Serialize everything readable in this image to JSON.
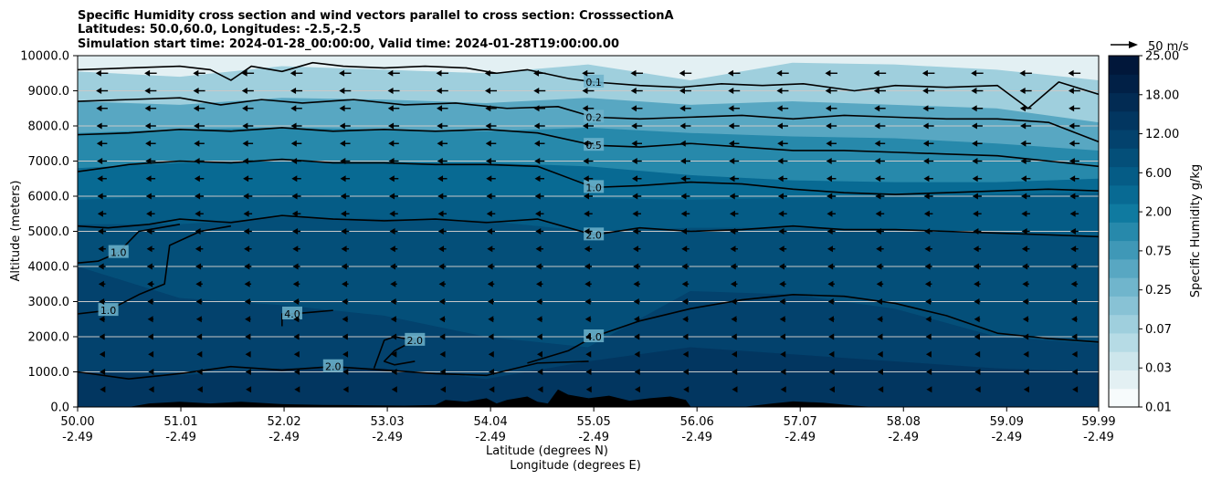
{
  "title_lines": [
    "Specific Humidity cross section and wind vectors parallel to cross section: CrosssectionA",
    "Latitudes: 50.0,60.0, Longitudes: -2.5,-2.5",
    "Simulation start time: 2024-01-28_00:00:00, Valid time: 2024-01-28T19:00:00.00"
  ],
  "colors": {
    "contour_line": "#000000",
    "terrain": "#000000",
    "gridline": "#c8c8c8",
    "fill_levels": [
      "#f7fbfc",
      "#e3f0f3",
      "#cde6ec",
      "#b6dbe5",
      "#9fcfdd",
      "#88c2d5",
      "#70b5cc",
      "#58a7c2",
      "#3f98b7",
      "#2789ab",
      "#0f7aa0",
      "#086a93",
      "#055c86",
      "#044f79",
      "#03426d",
      "#023660",
      "#022b53",
      "#012046",
      "#01173a"
    ]
  },
  "chart_data": {
    "type": "contour",
    "xlabel_lines": [
      "Latitude (degrees N)",
      "Longitude (degrees E)"
    ],
    "ylabel": "Altitude (meters)",
    "xlim": [
      50.0,
      59.99
    ],
    "ylim": [
      0,
      10000
    ],
    "grid": "horizontal",
    "x_ticks": [
      {
        "value": 50.0,
        "lat": "50.00",
        "lon": "-2.49"
      },
      {
        "value": 51.01,
        "lat": "51.01",
        "lon": "-2.49"
      },
      {
        "value": 52.02,
        "lat": "52.02",
        "lon": "-2.49"
      },
      {
        "value": 53.03,
        "lat": "53.03",
        "lon": "-2.49"
      },
      {
        "value": 54.04,
        "lat": "54.04",
        "lon": "-2.49"
      },
      {
        "value": 55.05,
        "lat": "55.05",
        "lon": "-2.49"
      },
      {
        "value": 56.06,
        "lat": "56.06",
        "lon": "-2.49"
      },
      {
        "value": 57.07,
        "lat": "57.07",
        "lon": "-2.49"
      },
      {
        "value": 58.08,
        "lat": "58.08",
        "lon": "-2.49"
      },
      {
        "value": 59.09,
        "lat": "59.09",
        "lon": "-2.49"
      },
      {
        "value": 59.99,
        "lat": "59.99",
        "lon": "-2.49"
      }
    ],
    "y_ticks": [
      {
        "value": 0,
        "label": "0.0"
      },
      {
        "value": 1000,
        "label": "1000.0"
      },
      {
        "value": 2000,
        "label": "2000.0"
      },
      {
        "value": 3000,
        "label": "3000.0"
      },
      {
        "value": 4000,
        "label": "4000.0"
      },
      {
        "value": 5000,
        "label": "5000.0"
      },
      {
        "value": 6000,
        "label": "6000.0"
      },
      {
        "value": 7000,
        "label": "7000.0"
      },
      {
        "value": 8000,
        "label": "8000.0"
      },
      {
        "value": 9000,
        "label": "9000.0"
      },
      {
        "value": 10000,
        "label": "10000.0"
      }
    ],
    "colorbar": {
      "label": "Specific Humidity g/kg",
      "tick_labels": [
        "0.01",
        "0.03",
        "0.07",
        "0.25",
        "0.75",
        "2.00",
        "6.00",
        "12.00",
        "18.00",
        "25.00"
      ]
    },
    "quiver_key": {
      "label": "50 m/s"
    },
    "filled_bands": [
      {
        "level_index": 1,
        "top_alt": [
          10000,
          10000,
          10000,
          10000,
          10000,
          10000,
          10000,
          10000,
          10000,
          10000,
          10000
        ]
      },
      {
        "level_index": 4,
        "top_alt": [
          9550,
          9400,
          9700,
          9600,
          9500,
          9750,
          9300,
          9800,
          9750,
          9600,
          9300
        ]
      },
      {
        "level_index": 7,
        "top_alt": [
          8700,
          8600,
          8800,
          8750,
          8650,
          8800,
          8600,
          8700,
          8600,
          8500,
          8100
        ]
      },
      {
        "level_index": 9,
        "top_alt": [
          7800,
          7900,
          7950,
          7900,
          7850,
          7950,
          7800,
          7700,
          7650,
          7500,
          7300
        ]
      },
      {
        "level_index": 11,
        "top_alt": [
          6800,
          6950,
          7000,
          6950,
          6950,
          6850,
          6600,
          6450,
          6400,
          6400,
          6500
        ]
      },
      {
        "level_index": 12,
        "top_alt": [
          5900,
          6000,
          6050,
          6000,
          6000,
          5950,
          5900,
          5950,
          6000,
          6050,
          6100
        ]
      },
      {
        "level_index": 13,
        "top_alt": [
          5200,
          5200,
          5400,
          5350,
          5300,
          5000,
          5100,
          5100,
          5050,
          4950,
          4850
        ]
      },
      {
        "level_index": 14,
        "top_alt": [
          4000,
          3100,
          2900,
          2600,
          2000,
          1700,
          3300,
          3200,
          2800,
          2000,
          1800
        ]
      },
      {
        "level_index": 15,
        "top_alt": [
          1000,
          900,
          1100,
          1100,
          800,
          1300,
          1700,
          1500,
          1300,
          1100,
          1000
        ]
      }
    ],
    "contours": [
      {
        "level": "0.1",
        "label_x": 55.05,
        "points": [
          [
            50.0,
            9600
          ],
          [
            50.5,
            9650
          ],
          [
            51.0,
            9700
          ],
          [
            51.3,
            9600
          ],
          [
            51.5,
            9300
          ],
          [
            51.7,
            9700
          ],
          [
            52.0,
            9550
          ],
          [
            52.3,
            9800
          ],
          [
            52.6,
            9700
          ],
          [
            53.0,
            9650
          ],
          [
            53.4,
            9700
          ],
          [
            53.8,
            9650
          ],
          [
            54.1,
            9500
          ],
          [
            54.4,
            9600
          ],
          [
            54.8,
            9350
          ],
          [
            55.05,
            9250
          ],
          [
            55.5,
            9150
          ],
          [
            55.9,
            9100
          ],
          [
            56.3,
            9200
          ],
          [
            56.7,
            9150
          ],
          [
            57.1,
            9200
          ],
          [
            57.6,
            9000
          ],
          [
            58.0,
            9150
          ],
          [
            58.5,
            9100
          ],
          [
            59.0,
            9150
          ],
          [
            59.3,
            8500
          ],
          [
            59.6,
            9250
          ],
          [
            59.99,
            8900
          ]
        ]
      },
      {
        "level": "0.2",
        "label_x": 55.05,
        "points": [
          [
            50.0,
            8700
          ],
          [
            50.5,
            8750
          ],
          [
            51.0,
            8800
          ],
          [
            51.4,
            8600
          ],
          [
            51.8,
            8750
          ],
          [
            52.2,
            8650
          ],
          [
            52.7,
            8750
          ],
          [
            53.2,
            8600
          ],
          [
            53.7,
            8650
          ],
          [
            54.2,
            8500
          ],
          [
            54.7,
            8550
          ],
          [
            55.05,
            8250
          ],
          [
            55.5,
            8200
          ],
          [
            56.0,
            8250
          ],
          [
            56.5,
            8300
          ],
          [
            57.0,
            8200
          ],
          [
            57.5,
            8300
          ],
          [
            58.0,
            8250
          ],
          [
            58.5,
            8200
          ],
          [
            59.0,
            8200
          ],
          [
            59.5,
            8100
          ],
          [
            59.99,
            7550
          ]
        ]
      },
      {
        "level": "0.5",
        "label_x": 55.05,
        "points": [
          [
            50.0,
            7750
          ],
          [
            50.5,
            7800
          ],
          [
            51.0,
            7900
          ],
          [
            51.5,
            7850
          ],
          [
            52.0,
            7950
          ],
          [
            52.5,
            7850
          ],
          [
            53.0,
            7900
          ],
          [
            53.5,
            7850
          ],
          [
            54.0,
            7900
          ],
          [
            54.5,
            7800
          ],
          [
            55.05,
            7450
          ],
          [
            55.5,
            7400
          ],
          [
            56.0,
            7500
          ],
          [
            56.5,
            7400
          ],
          [
            57.0,
            7300
          ],
          [
            57.5,
            7300
          ],
          [
            58.0,
            7250
          ],
          [
            58.5,
            7200
          ],
          [
            59.0,
            7150
          ],
          [
            59.5,
            7000
          ],
          [
            59.99,
            6850
          ]
        ]
      },
      {
        "level": "1.0",
        "label_x": 55.05,
        "points": [
          [
            50.0,
            6700
          ],
          [
            50.5,
            6900
          ],
          [
            51.0,
            7000
          ],
          [
            51.5,
            6950
          ],
          [
            52.0,
            7050
          ],
          [
            52.5,
            6950
          ],
          [
            53.0,
            6950
          ],
          [
            53.5,
            6900
          ],
          [
            54.0,
            6900
          ],
          [
            54.5,
            6850
          ],
          [
            55.05,
            6250
          ],
          [
            55.5,
            6300
          ],
          [
            56.0,
            6400
          ],
          [
            56.5,
            6350
          ],
          [
            57.0,
            6200
          ],
          [
            57.5,
            6100
          ],
          [
            58.0,
            6050
          ],
          [
            58.5,
            6100
          ],
          [
            59.0,
            6150
          ],
          [
            59.5,
            6200
          ],
          [
            59.99,
            6150
          ]
        ]
      },
      {
        "level": "2.0",
        "label_x": 55.05,
        "points": [
          [
            50.0,
            5150
          ],
          [
            50.3,
            5100
          ],
          [
            50.7,
            5200
          ],
          [
            51.0,
            5350
          ],
          [
            51.5,
            5250
          ],
          [
            52.0,
            5450
          ],
          [
            52.5,
            5350
          ],
          [
            53.0,
            5300
          ],
          [
            53.5,
            5350
          ],
          [
            54.0,
            5250
          ],
          [
            54.5,
            5350
          ],
          [
            55.05,
            4900
          ],
          [
            55.5,
            5100
          ],
          [
            56.0,
            5000
          ],
          [
            56.5,
            5050
          ],
          [
            57.0,
            5150
          ],
          [
            57.5,
            5050
          ],
          [
            58.0,
            5050
          ],
          [
            58.5,
            5000
          ],
          [
            59.0,
            4950
          ],
          [
            59.5,
            4900
          ],
          [
            59.99,
            4850
          ]
        ]
      },
      {
        "level": "1.0",
        "label_x": 50.4,
        "points": [
          [
            50.0,
            4100
          ],
          [
            50.2,
            4150
          ],
          [
            50.4,
            4400
          ],
          [
            50.6,
            5000
          ],
          [
            50.8,
            5100
          ],
          [
            51.0,
            5200
          ]
        ]
      },
      {
        "level": "4.0",
        "label_x": 55.05,
        "points": [
          [
            54.4,
            1250
          ],
          [
            54.8,
            1600
          ],
          [
            55.05,
            2000
          ],
          [
            55.5,
            2450
          ],
          [
            56.0,
            2800
          ],
          [
            56.5,
            3050
          ],
          [
            57.0,
            3200
          ],
          [
            57.5,
            3150
          ],
          [
            58.0,
            2950
          ],
          [
            58.5,
            2600
          ],
          [
            59.0,
            2100
          ],
          [
            59.5,
            1950
          ],
          [
            59.99,
            1850
          ]
        ]
      },
      {
        "level": "1.0",
        "label_x": 50.3,
        "points": [
          [
            50.0,
            2650
          ],
          [
            50.3,
            2750
          ],
          [
            50.6,
            3200
          ],
          [
            50.85,
            3500
          ],
          [
            50.9,
            4600
          ],
          [
            51.2,
            5000
          ],
          [
            51.5,
            5150
          ]
        ]
      },
      {
        "level": "4.0",
        "label_x": 52.1,
        "points": [
          [
            52.0,
            2300
          ],
          [
            52.0,
            2650
          ],
          [
            52.1,
            2650
          ],
          [
            52.3,
            2700
          ],
          [
            52.5,
            2750
          ]
        ]
      },
      {
        "level": "2.0",
        "label_x": 53.2,
        "points": [
          [
            52.9,
            1100
          ],
          [
            52.95,
            1500
          ],
          [
            53.0,
            1900
          ],
          [
            53.1,
            2000
          ],
          [
            53.3,
            1900
          ],
          [
            53.1,
            1600
          ],
          [
            53.0,
            1300
          ],
          [
            53.1,
            1200
          ],
          [
            53.3,
            1300
          ]
        ]
      },
      {
        "level": "2.0",
        "label_x": 52.5,
        "points": [
          [
            50.0,
            1000
          ],
          [
            50.5,
            800
          ],
          [
            51.0,
            950
          ],
          [
            51.5,
            1150
          ],
          [
            52.0,
            1050
          ],
          [
            52.5,
            1150
          ],
          [
            53.0,
            1050
          ],
          [
            53.5,
            950
          ],
          [
            54.0,
            900
          ],
          [
            54.5,
            1250
          ],
          [
            55.0,
            1300
          ]
        ]
      }
    ],
    "terrain": [
      [
        50.0,
        0
      ],
      [
        50.5,
        0
      ],
      [
        50.7,
        100
      ],
      [
        51.0,
        150
      ],
      [
        51.3,
        100
      ],
      [
        51.6,
        150
      ],
      [
        52.0,
        80
      ],
      [
        52.4,
        60
      ],
      [
        52.8,
        50
      ],
      [
        53.2,
        40
      ],
      [
        53.5,
        60
      ],
      [
        53.6,
        200
      ],
      [
        53.8,
        150
      ],
      [
        54.0,
        250
      ],
      [
        54.1,
        100
      ],
      [
        54.2,
        200
      ],
      [
        54.4,
        300
      ],
      [
        54.5,
        150
      ],
      [
        54.6,
        100
      ],
      [
        54.7,
        500
      ],
      [
        54.8,
        350
      ],
      [
        55.0,
        250
      ],
      [
        55.2,
        320
      ],
      [
        55.4,
        180
      ],
      [
        55.6,
        250
      ],
      [
        55.8,
        300
      ],
      [
        55.95,
        200
      ],
      [
        56.0,
        0
      ],
      [
        56.5,
        0
      ],
      [
        56.8,
        100
      ],
      [
        57.0,
        160
      ],
      [
        57.3,
        120
      ],
      [
        57.6,
        40
      ],
      [
        57.8,
        0
      ],
      [
        59.99,
        0
      ]
    ],
    "wind_u": -1,
    "wind_speed_scale": 50
  }
}
